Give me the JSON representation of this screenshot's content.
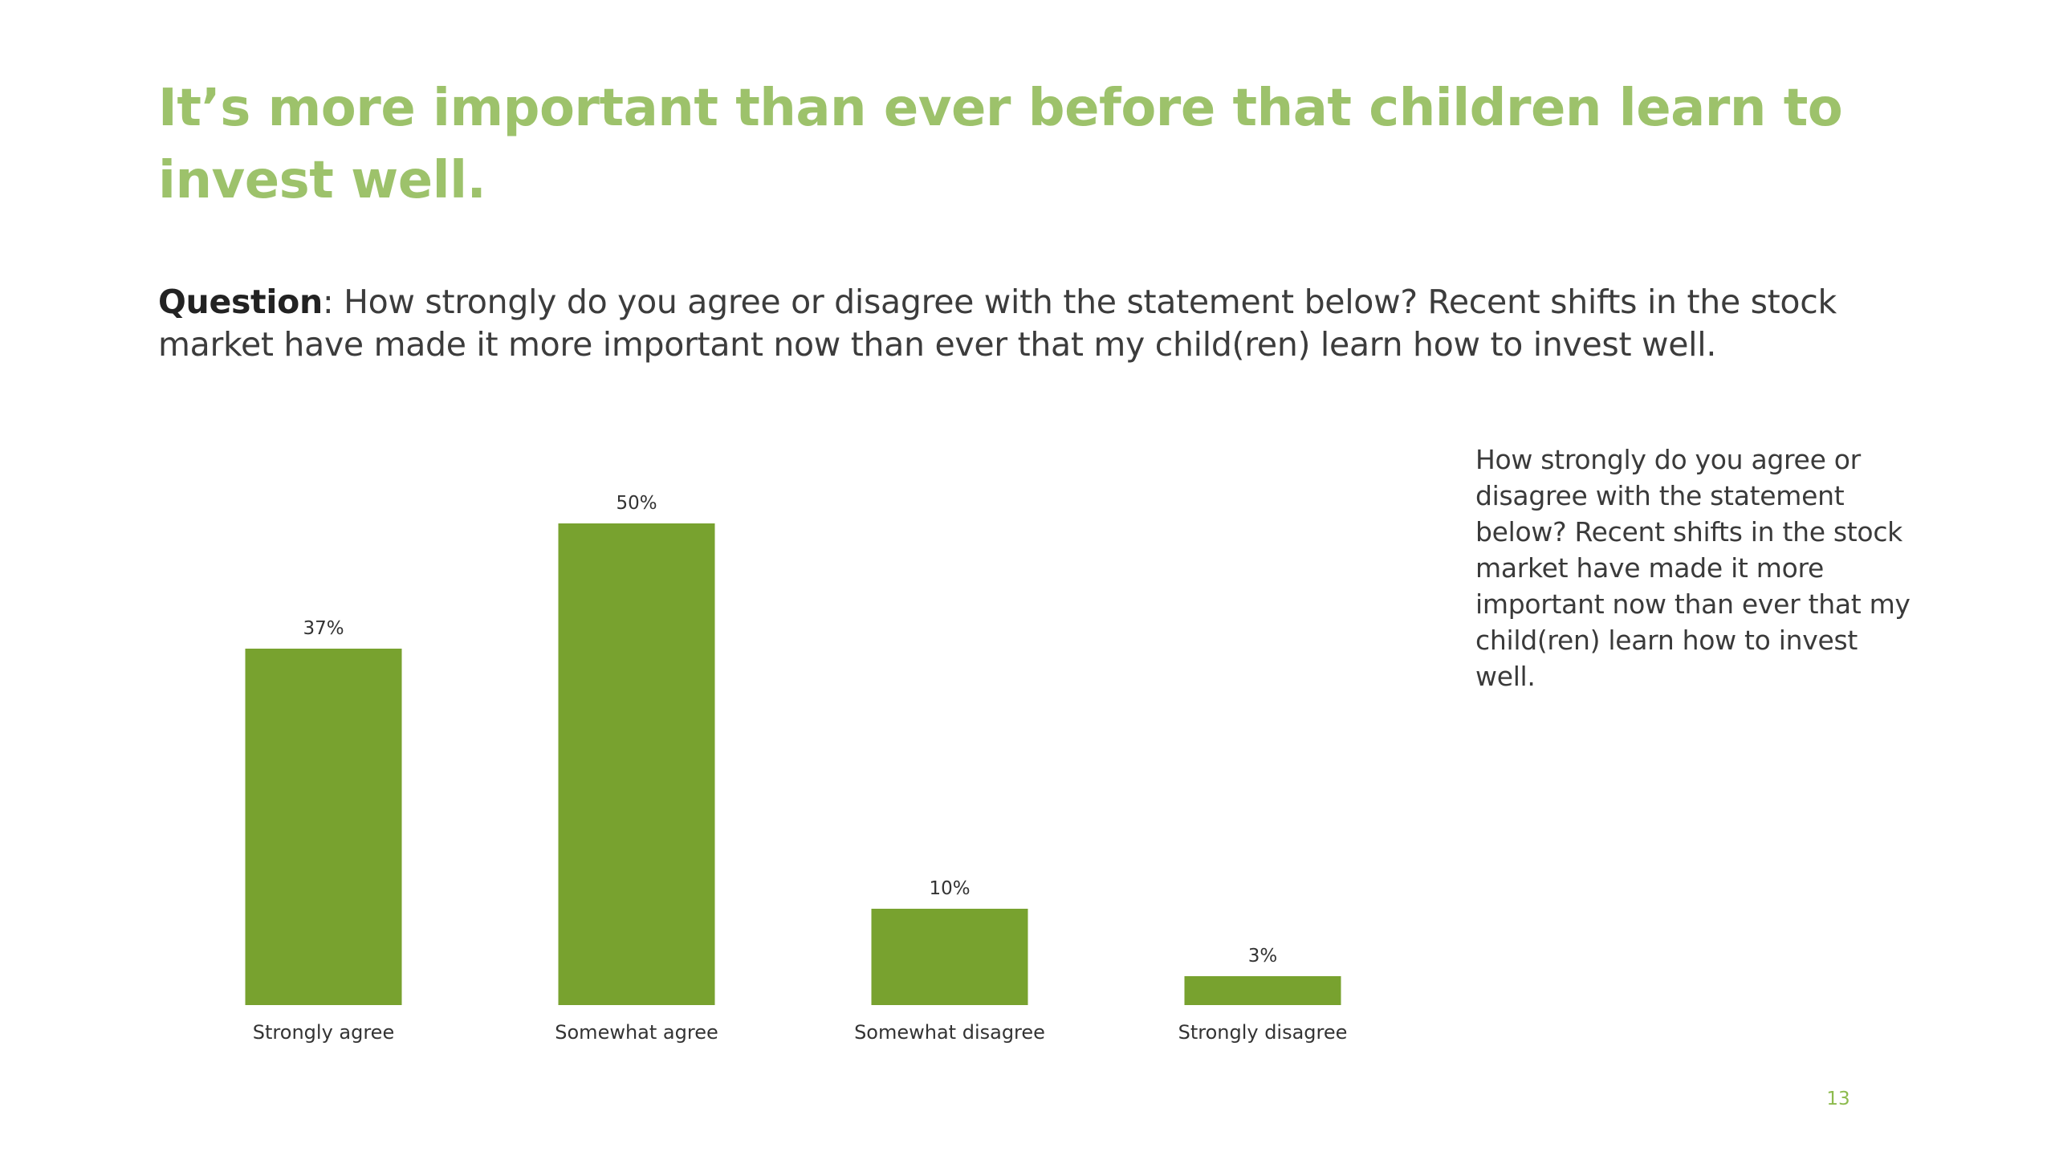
{
  "slide": {
    "title": "It’s more important than ever before that children learn to invest well.",
    "question_label": "Question",
    "question_text": ": How strongly do you agree or disagree with the statement below? Recent shifts in the stock market have made it more important now than ever that my child(ren) learn how to invest well.",
    "side_note": "How strongly do you agree or disagree with the statement below? Recent shifts in the stock market have made it more important now than ever that my child(ren) learn how to invest well.",
    "page_number": "13"
  },
  "colors": {
    "title": "#9dc26b",
    "bar": "#78a22f",
    "text": "#3c3c3c",
    "page_number": "#8dbb4e"
  },
  "chart_data": {
    "type": "bar",
    "categories": [
      "Strongly agree",
      "Somewhat agree",
      "Somewhat disagree",
      "Strongly disagree"
    ],
    "values": [
      37,
      50,
      10,
      3
    ],
    "data_labels": [
      "37%",
      "50%",
      "10%",
      "3%"
    ],
    "title": "",
    "xlabel": "",
    "ylabel": "",
    "ylim": [
      0,
      50
    ],
    "grid": false,
    "legend": "none"
  }
}
